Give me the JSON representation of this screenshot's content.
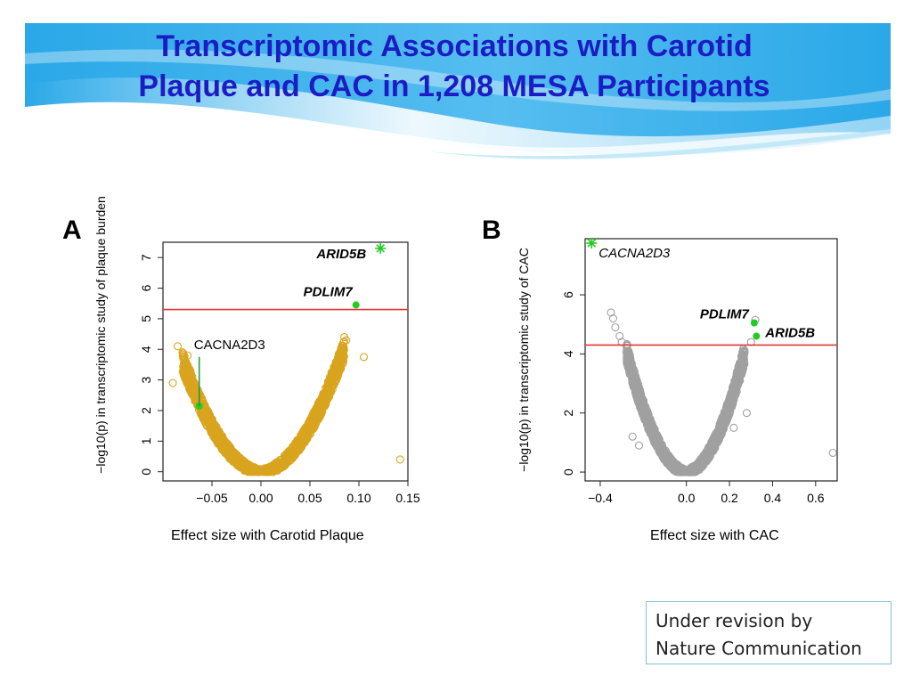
{
  "slide": {
    "title_line1": "Transcriptomic Associations with Carotid",
    "title_line2": "Plaque and CAC in 1,208 MESA Participants",
    "colors": {
      "title": "#1c1cc4",
      "banner_dark": "#1aa6e6",
      "banner_light": "#bfe7f8"
    },
    "note_line1": "Under revision by",
    "note_line2": "Nature Communication"
  },
  "chart_data": [
    {
      "panel": "A",
      "type": "scatter",
      "xlabel": "Effect size with Carotid Plaque",
      "ylabel": "−log10(p) in transcriptomic study of plaque burden",
      "x_ticks": [
        "−0.05",
        "0.00",
        "0.05",
        "0.10",
        "0.15"
      ],
      "x_tick_values": [
        -0.05,
        0,
        0.05,
        0.1,
        0.15
      ],
      "y_ticks": [
        "0",
        "1",
        "2",
        "3",
        "4",
        "5",
        "6",
        "7"
      ],
      "y_tick_values": [
        0,
        1,
        2,
        3,
        4,
        5,
        6,
        7
      ],
      "xlim": [
        -0.1,
        0.15
      ],
      "ylim": [
        -0.3,
        7.5
      ],
      "threshold": 5.3,
      "point_color": "#d9a41e",
      "threshold_color": "#e53935",
      "highlight_color": "#22cc22",
      "volcano": {
        "left_x": -0.08,
        "right_x": 0.085,
        "left_y": 3.6,
        "right_y": 4.0
      },
      "outliers": [
        {
          "x": -0.09,
          "y": 2.9
        },
        {
          "x": -0.085,
          "y": 4.1
        },
        {
          "x": -0.08,
          "y": 3.9
        },
        {
          "x": -0.075,
          "y": 3.8
        },
        {
          "x": -0.072,
          "y": 3.3
        },
        {
          "x": 0.085,
          "y": 4.4
        },
        {
          "x": 0.087,
          "y": 4.3
        },
        {
          "x": 0.105,
          "y": 3.75
        },
        {
          "x": 0.142,
          "y": 0.4
        },
        {
          "x": -0.068,
          "y": 2.6
        },
        {
          "x": 0.078,
          "y": 3.6
        }
      ],
      "highlights": [
        {
          "label": "ARID5B",
          "x": 0.122,
          "y": 7.3,
          "marker": "star",
          "label_style": "bold-italic"
        },
        {
          "label": "PDLIM7",
          "x": 0.097,
          "y": 5.45,
          "marker": "dot",
          "label_style": "bold-italic"
        },
        {
          "label": "CACNA2D3",
          "x": -0.063,
          "y": 2.15,
          "marker": "dot",
          "label_style": "plain"
        }
      ]
    },
    {
      "panel": "B",
      "type": "scatter",
      "xlabel": "Effect size with CAC",
      "ylabel": "−log10(p) in transcriptomic study of CAC",
      "x_ticks": [
        "−0.4",
        "0.0",
        "0.2",
        "0.4",
        "0.6"
      ],
      "x_tick_values": [
        -0.4,
        0,
        0.2,
        0.4,
        0.6
      ],
      "y_ticks": [
        "0",
        "2",
        "4",
        "6"
      ],
      "y_tick_values": [
        0,
        2,
        4,
        6
      ],
      "xlim": [
        -0.47,
        0.7
      ],
      "ylim": [
        -0.3,
        7.9
      ],
      "threshold": 4.3,
      "point_color": "#a0a0a0",
      "threshold_color": "#e53935",
      "highlight_color": "#22cc22",
      "volcano": {
        "left_x": -0.28,
        "right_x": 0.27,
        "left_y": 4.1,
        "right_y": 4.0
      },
      "outliers": [
        {
          "x": -0.35,
          "y": 5.4
        },
        {
          "x": -0.34,
          "y": 5.2
        },
        {
          "x": -0.33,
          "y": 4.9
        },
        {
          "x": -0.31,
          "y": 4.6
        },
        {
          "x": -0.3,
          "y": 4.4
        },
        {
          "x": 0.3,
          "y": 4.4
        },
        {
          "x": 0.32,
          "y": 5.15
        },
        {
          "x": 0.68,
          "y": 0.65
        },
        {
          "x": -0.25,
          "y": 1.2
        },
        {
          "x": -0.22,
          "y": 0.9
        },
        {
          "x": 0.28,
          "y": 2.0
        },
        {
          "x": 0.22,
          "y": 1.5
        }
      ],
      "highlights": [
        {
          "label": "CACNA2D3",
          "x": -0.44,
          "y": 7.75,
          "marker": "star",
          "label_style": "italic"
        },
        {
          "label": "PDLIM7",
          "x": 0.315,
          "y": 5.05,
          "marker": "dot",
          "label_style": "bold-italic"
        },
        {
          "label": "ARID5B",
          "x": 0.325,
          "y": 4.6,
          "marker": "dot",
          "label_style": "bold-italic"
        }
      ]
    }
  ]
}
